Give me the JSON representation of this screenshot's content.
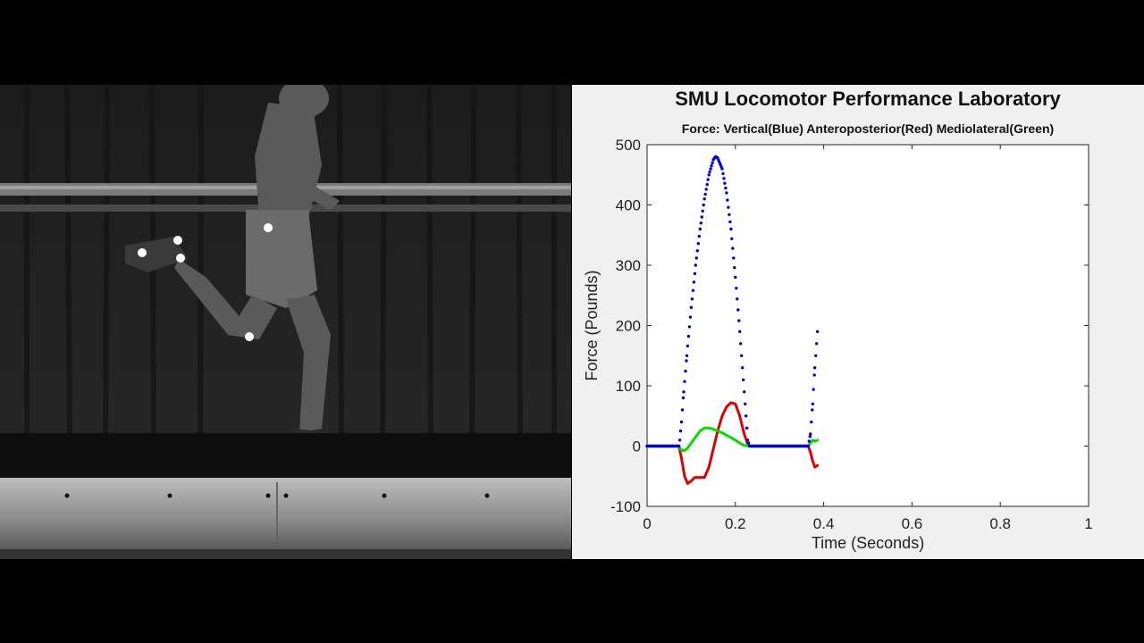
{
  "video": {
    "description_icon": "runner-on-treadmill-image"
  },
  "chart_data": {
    "type": "scatter",
    "title": "SMU Locomotor Performance Laboratory",
    "subtitle": "Force: Vertical(Blue) Anteroposterior(Red) Mediolateral(Green)",
    "xlabel": "Time (Seconds)",
    "ylabel": "Force (Pounds)",
    "xlim": [
      0,
      1
    ],
    "ylim": [
      -100,
      500
    ],
    "xticks": [
      "0",
      "0.2",
      "0.4",
      "0.6",
      "0.8",
      "1"
    ],
    "yticks": [
      "-100",
      "0",
      "100",
      "200",
      "300",
      "400",
      "500"
    ],
    "grid": false,
    "colors": {
      "vertical": "#0000dd",
      "anteroposterior": "#e00000",
      "mediolateral": "#00dd00"
    },
    "series": [
      {
        "key": "vertical",
        "style": "dots",
        "points": [
          [
            0,
            0
          ],
          [
            0.072,
            0
          ],
          [
            0.074,
            10
          ],
          [
            0.078,
            40
          ],
          [
            0.083,
            90
          ],
          [
            0.09,
            150
          ],
          [
            0.1,
            230
          ],
          [
            0.11,
            300
          ],
          [
            0.12,
            360
          ],
          [
            0.13,
            410
          ],
          [
            0.14,
            450
          ],
          [
            0.15,
            475
          ],
          [
            0.155,
            480
          ],
          [
            0.16,
            478
          ],
          [
            0.17,
            460
          ],
          [
            0.18,
            420
          ],
          [
            0.19,
            360
          ],
          [
            0.2,
            280
          ],
          [
            0.21,
            190
          ],
          [
            0.22,
            90
          ],
          [
            0.228,
            10
          ],
          [
            0.232,
            0
          ],
          [
            0.365,
            0
          ],
          [
            0.37,
            20
          ],
          [
            0.375,
            70
          ],
          [
            0.38,
            130
          ],
          [
            0.386,
            190
          ]
        ]
      },
      {
        "key": "anteroposterior",
        "style": "line",
        "points": [
          [
            0,
            0
          ],
          [
            0.072,
            0
          ],
          [
            0.078,
            -20
          ],
          [
            0.085,
            -50
          ],
          [
            0.092,
            -62
          ],
          [
            0.1,
            -58
          ],
          [
            0.108,
            -52
          ],
          [
            0.118,
            -52
          ],
          [
            0.13,
            -52
          ],
          [
            0.14,
            -35
          ],
          [
            0.15,
            -5
          ],
          [
            0.16,
            25
          ],
          [
            0.17,
            50
          ],
          [
            0.18,
            65
          ],
          [
            0.19,
            72
          ],
          [
            0.2,
            70
          ],
          [
            0.21,
            50
          ],
          [
            0.22,
            20
          ],
          [
            0.228,
            3
          ],
          [
            0.232,
            0
          ],
          [
            0.365,
            0
          ],
          [
            0.37,
            -10
          ],
          [
            0.375,
            -25
          ],
          [
            0.38,
            -35
          ],
          [
            0.386,
            -32
          ]
        ]
      },
      {
        "key": "mediolateral",
        "style": "line",
        "points": [
          [
            0,
            0
          ],
          [
            0.072,
            0
          ],
          [
            0.076,
            -5
          ],
          [
            0.082,
            -8
          ],
          [
            0.09,
            -5
          ],
          [
            0.1,
            5
          ],
          [
            0.11,
            15
          ],
          [
            0.12,
            25
          ],
          [
            0.13,
            30
          ],
          [
            0.14,
            30
          ],
          [
            0.15,
            28
          ],
          [
            0.16,
            25
          ],
          [
            0.17,
            22
          ],
          [
            0.18,
            18
          ],
          [
            0.19,
            14
          ],
          [
            0.2,
            10
          ],
          [
            0.21,
            5
          ],
          [
            0.22,
            1
          ],
          [
            0.232,
            0
          ],
          [
            0.365,
            0
          ],
          [
            0.37,
            5
          ],
          [
            0.375,
            10
          ],
          [
            0.38,
            8
          ],
          [
            0.386,
            10
          ]
        ]
      }
    ]
  }
}
